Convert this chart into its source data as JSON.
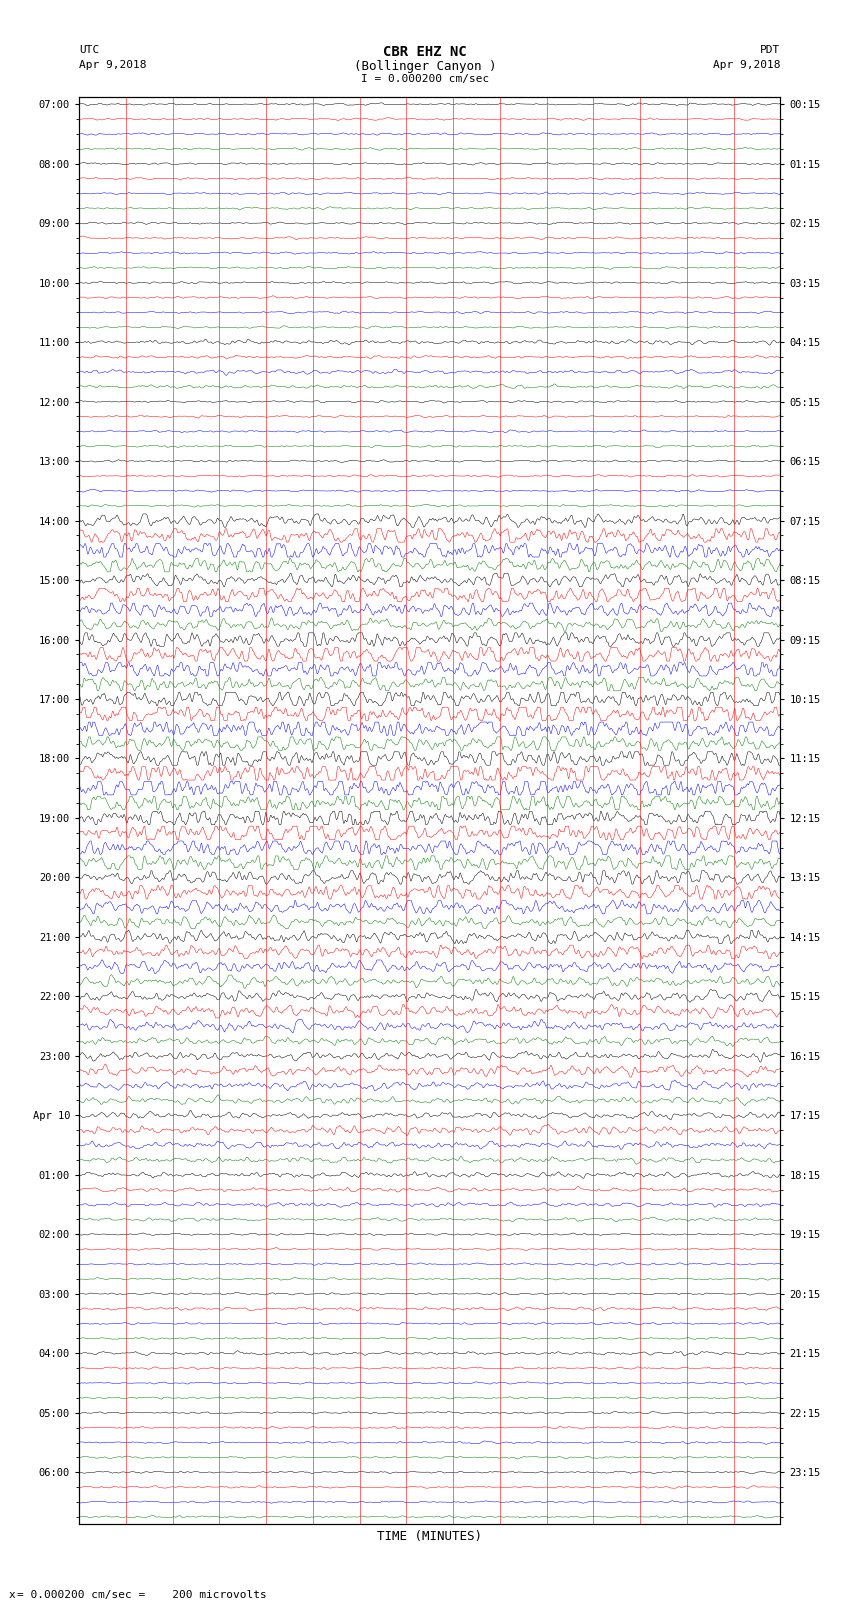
{
  "title_line1": "CBR EHZ NC",
  "title_line2": "(Bollinger Canyon )",
  "scale_text": "I = 0.000200 cm/sec",
  "footer_text": "= 0.000200 cm/sec =    200 microvolts",
  "left_label": "UTC",
  "left_date": "Apr 9,2018",
  "right_label": "PDT",
  "right_date": "Apr 9,2018",
  "xlabel": "TIME (MINUTES)",
  "xmin": 0,
  "xmax": 15,
  "utc_labels": [
    "07:00",
    "",
    "",
    "",
    "08:00",
    "",
    "",
    "",
    "09:00",
    "",
    "",
    "",
    "10:00",
    "",
    "",
    "",
    "11:00",
    "",
    "",
    "",
    "12:00",
    "",
    "",
    "",
    "13:00",
    "",
    "",
    "",
    "14:00",
    "",
    "",
    "",
    "15:00",
    "",
    "",
    "",
    "16:00",
    "",
    "",
    "",
    "17:00",
    "",
    "",
    "",
    "18:00",
    "",
    "",
    "",
    "19:00",
    "",
    "",
    "",
    "20:00",
    "",
    "",
    "",
    "21:00",
    "",
    "",
    "",
    "22:00",
    "",
    "",
    "",
    "23:00",
    "",
    "",
    "",
    "Apr 10",
    "",
    "",
    "",
    "01:00",
    "",
    "",
    "",
    "02:00",
    "",
    "",
    "",
    "03:00",
    "",
    "",
    "",
    "04:00",
    "",
    "",
    "",
    "05:00",
    "",
    "",
    "",
    "06:00",
    "",
    "",
    ""
  ],
  "pdt_labels": [
    "00:15",
    "",
    "",
    "",
    "01:15",
    "",
    "",
    "",
    "02:15",
    "",
    "",
    "",
    "03:15",
    "",
    "",
    "",
    "04:15",
    "",
    "",
    "",
    "05:15",
    "",
    "",
    "",
    "06:15",
    "",
    "",
    "",
    "07:15",
    "",
    "",
    "",
    "08:15",
    "",
    "",
    "",
    "09:15",
    "",
    "",
    "",
    "10:15",
    "",
    "",
    "",
    "11:15",
    "",
    "",
    "",
    "12:15",
    "",
    "",
    "",
    "13:15",
    "",
    "",
    "",
    "14:15",
    "",
    "",
    "",
    "15:15",
    "",
    "",
    "",
    "16:15",
    "",
    "",
    "",
    "17:15",
    "",
    "",
    "",
    "18:15",
    "",
    "",
    "",
    "19:15",
    "",
    "",
    "",
    "20:15",
    "",
    "",
    "",
    "21:15",
    "",
    "",
    "",
    "22:15",
    "",
    "",
    "",
    "23:15",
    "",
    "",
    ""
  ],
  "trace_colors": [
    "black",
    "red",
    "blue",
    "green"
  ],
  "n_rows": 96,
  "background_color": "white",
  "quiet_amp": 0.03,
  "row_amplitudes": [
    0.03,
    0.03,
    0.03,
    0.03,
    0.03,
    0.03,
    0.03,
    0.03,
    0.03,
    0.03,
    0.03,
    0.03,
    0.03,
    0.03,
    0.03,
    0.03,
    0.06,
    0.04,
    0.06,
    0.05,
    0.03,
    0.03,
    0.03,
    0.03,
    0.03,
    0.03,
    0.03,
    0.03,
    0.18,
    0.25,
    0.28,
    0.22,
    0.2,
    0.28,
    0.22,
    0.18,
    0.25,
    0.3,
    0.28,
    0.22,
    0.28,
    0.32,
    0.3,
    0.25,
    0.3,
    0.35,
    0.32,
    0.28,
    0.28,
    0.3,
    0.28,
    0.25,
    0.22,
    0.25,
    0.22,
    0.18,
    0.18,
    0.2,
    0.18,
    0.15,
    0.15,
    0.18,
    0.15,
    0.12,
    0.12,
    0.15,
    0.12,
    0.1,
    0.1,
    0.12,
    0.1,
    0.08,
    0.08,
    0.06,
    0.06,
    0.05,
    0.03,
    0.03,
    0.03,
    0.03,
    0.03,
    0.05,
    0.03,
    0.03,
    0.05,
    0.03,
    0.03,
    0.03,
    0.03,
    0.03,
    0.03,
    0.03,
    0.03,
    0.03,
    0.03,
    0.03
  ],
  "n_points": 3000
}
